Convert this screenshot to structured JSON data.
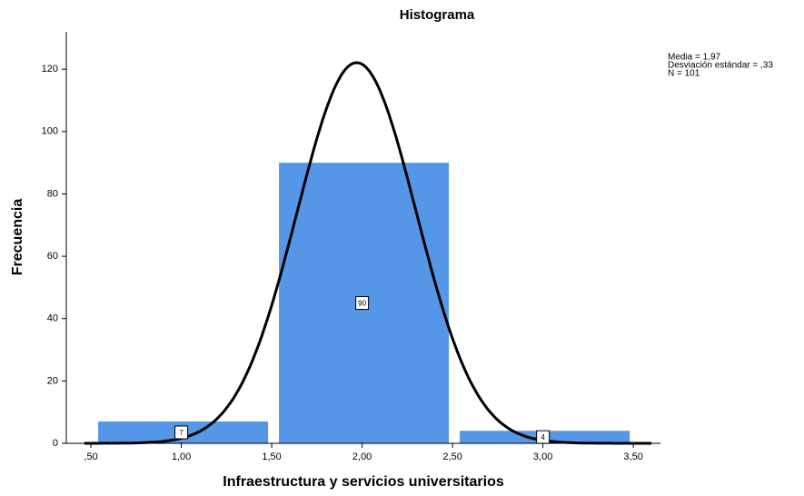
{
  "chart_data": {
    "type": "histogram",
    "title": "Histograma",
    "x_label": "Infraestructura y servicios universitarios",
    "y_label": "Frecuencia",
    "bins": [
      0.5,
      1.5,
      2.5,
      3.5
    ],
    "values": [
      7,
      90,
      4
    ],
    "color": "#5596e6",
    "xlim": [
      0.364,
      3.65
    ],
    "ylim": [
      0,
      132
    ],
    "xticks": [
      {
        "value": 0.5,
        "label": ",50"
      },
      {
        "value": 1,
        "label": "1,00"
      },
      {
        "value": 1.5,
        "label": "1,50"
      },
      {
        "value": 2,
        "label": "2,00"
      },
      {
        "value": 2.5,
        "label": "2,50"
      },
      {
        "value": 3,
        "label": "3,00"
      },
      {
        "value": 3.5,
        "label": "3,50"
      }
    ],
    "yticks": [
      0,
      20,
      40,
      60,
      80,
      100,
      120
    ],
    "stats": [
      {
        "value": 1.97,
        "label": "Media = 1,97"
      },
      {
        "value": 0.33,
        "label": "Desviación estándar = ,33"
      },
      {
        "value": 101,
        "label": "N = 101"
      }
    ]
  }
}
